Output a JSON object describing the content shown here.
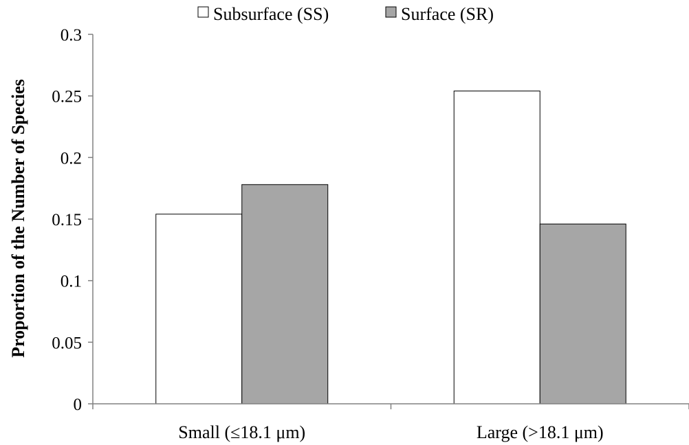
{
  "chart_data": {
    "type": "bar",
    "categories": [
      "Small (≤18.1 μm)",
      "Large (>18.1 μm)"
    ],
    "series": [
      {
        "name": "Subsurface (SS)",
        "values": [
          0.154,
          0.254
        ],
        "color": "#ffffff"
      },
      {
        "name": "Surface (SR)",
        "values": [
          0.178,
          0.146
        ],
        "color": "#a6a6a6"
      }
    ],
    "title": "",
    "xlabel": "",
    "ylabel": "Proportion of the Number of Species",
    "ylim": [
      0,
      0.3
    ],
    "yticks": [
      "0",
      "0.05",
      "0.1",
      "0.15",
      "0.2",
      "0.25",
      "0.3"
    ],
    "grid": false,
    "legend_position": "top-center"
  }
}
